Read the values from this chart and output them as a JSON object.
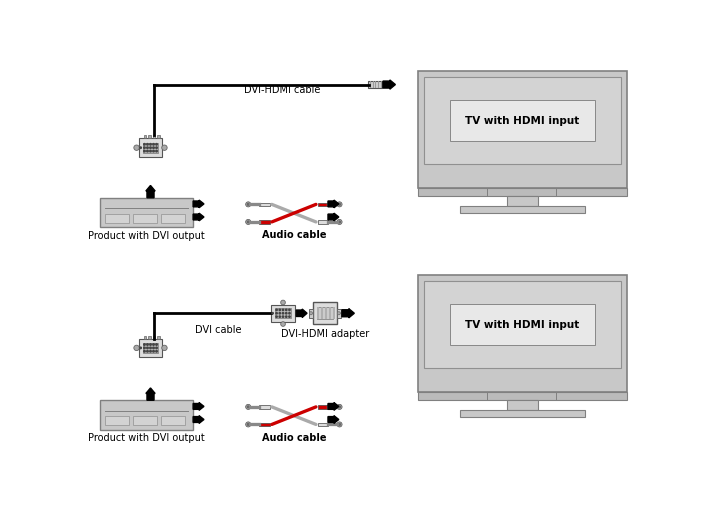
{
  "bg_color": "#ffffff",
  "panel_color": "#c8c8c8",
  "panel_border": "#808080",
  "screen_color": "#d3d3d3",
  "screen_border": "#909090",
  "text_color": "#000000",
  "label_fontsize": 7.0,
  "diagram1": {
    "product_label": "Product with DVI output",
    "cable_label": "DVI-HDMI cable",
    "audio_label": "Audio cable",
    "tv_label": "TV with HDMI input"
  },
  "diagram2": {
    "product_label": "Product with DVI output",
    "dvi_cable_label": "DVI cable",
    "adapter_label": "DVI-HDMI adapter",
    "audio_label": "Audio cable",
    "tv_label": "TV with HDMI input"
  }
}
